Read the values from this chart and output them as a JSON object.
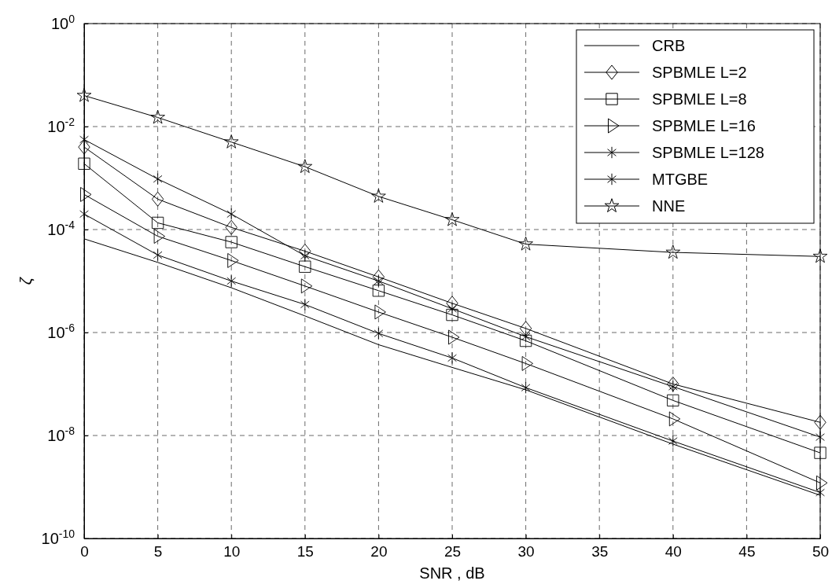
{
  "chart_data": {
    "type": "line",
    "xlabel": "SNR , dB",
    "ylabel": "ζ",
    "log": "y",
    "grid": true,
    "legend": "top right",
    "line_style": "solid",
    "x": [
      0,
      5,
      10,
      15,
      20,
      25,
      30,
      40,
      50
    ],
    "xlim": [
      0,
      50
    ],
    "xticks": [
      0,
      5,
      10,
      15,
      20,
      25,
      30,
      35,
      40,
      45,
      50
    ],
    "ylim": [
      1e-10,
      1
    ],
    "yticks": [
      {
        "value": 1e-10,
        "label": "10$^{-10}$"
      },
      {
        "value": 1e-08,
        "label": "10$^{-8}$"
      },
      {
        "value": 1e-06,
        "label": "10$^{-6}$"
      },
      {
        "value": 0.0001,
        "label": "10$^{-4}$"
      },
      {
        "value": 0.01,
        "label": "10$^{-2}$"
      },
      {
        "value": 1,
        "label": "10$^{0}$"
      }
    ],
    "series": [
      {
        "name": "CRB",
        "color": "#000000",
        "marker": "none",
        "values": [
          6.6e-05,
          2.3e-05,
          7.4e-06,
          2.1e-06,
          5.8e-07,
          2.1e-07,
          7.7e-08,
          6.8e-09,
          6.9e-10
        ]
      },
      {
        "name": "SPBMLE L=2",
        "color": "#000000",
        "marker": "diamond",
        "values": [
          0.004,
          0.00039,
          0.00011,
          3.8e-05,
          1.2e-05,
          3.7e-06,
          1.2e-06,
          1e-07,
          1.8e-08
        ]
      },
      {
        "name": "SPBMLE L=8",
        "color": "#000000",
        "marker": "square",
        "values": [
          0.0019,
          0.000135,
          5.7e-05,
          1.9e-05,
          6.5e-06,
          2.2e-06,
          6.9e-07,
          4.8e-08,
          4.6e-09
        ]
      },
      {
        "name": "SPBMLE L=16",
        "color": "#000000",
        "marker": "triangle",
        "values": [
          0.00048,
          7.4e-05,
          2.5e-05,
          8e-06,
          2.5e-06,
          8.1e-07,
          2.5e-07,
          2.1e-08,
          1.2e-09
        ]
      },
      {
        "name": "SPBMLE L=128",
        "color": "#000000",
        "marker": "cross",
        "values": [
          0.0002,
          3.2e-05,
          1e-05,
          3.5e-06,
          9.6e-07,
          3.2e-07,
          8.5e-08,
          7.8e-09,
          7.8e-10
        ]
      },
      {
        "name": "MTGBE",
        "color": "#000000",
        "marker": "cross",
        "values": [
          0.0056,
          0.00096,
          0.0002,
          3.1e-05,
          1e-05,
          2.9e-06,
          8.3e-07,
          8.9e-08,
          9.3e-09
        ]
      },
      {
        "name": "NNE",
        "color": "#000000",
        "marker": "star",
        "values": [
          0.04,
          0.015,
          0.005,
          0.00166,
          0.00044,
          0.000155,
          5.2e-05,
          3.6e-05,
          3e-05
        ]
      }
    ]
  }
}
